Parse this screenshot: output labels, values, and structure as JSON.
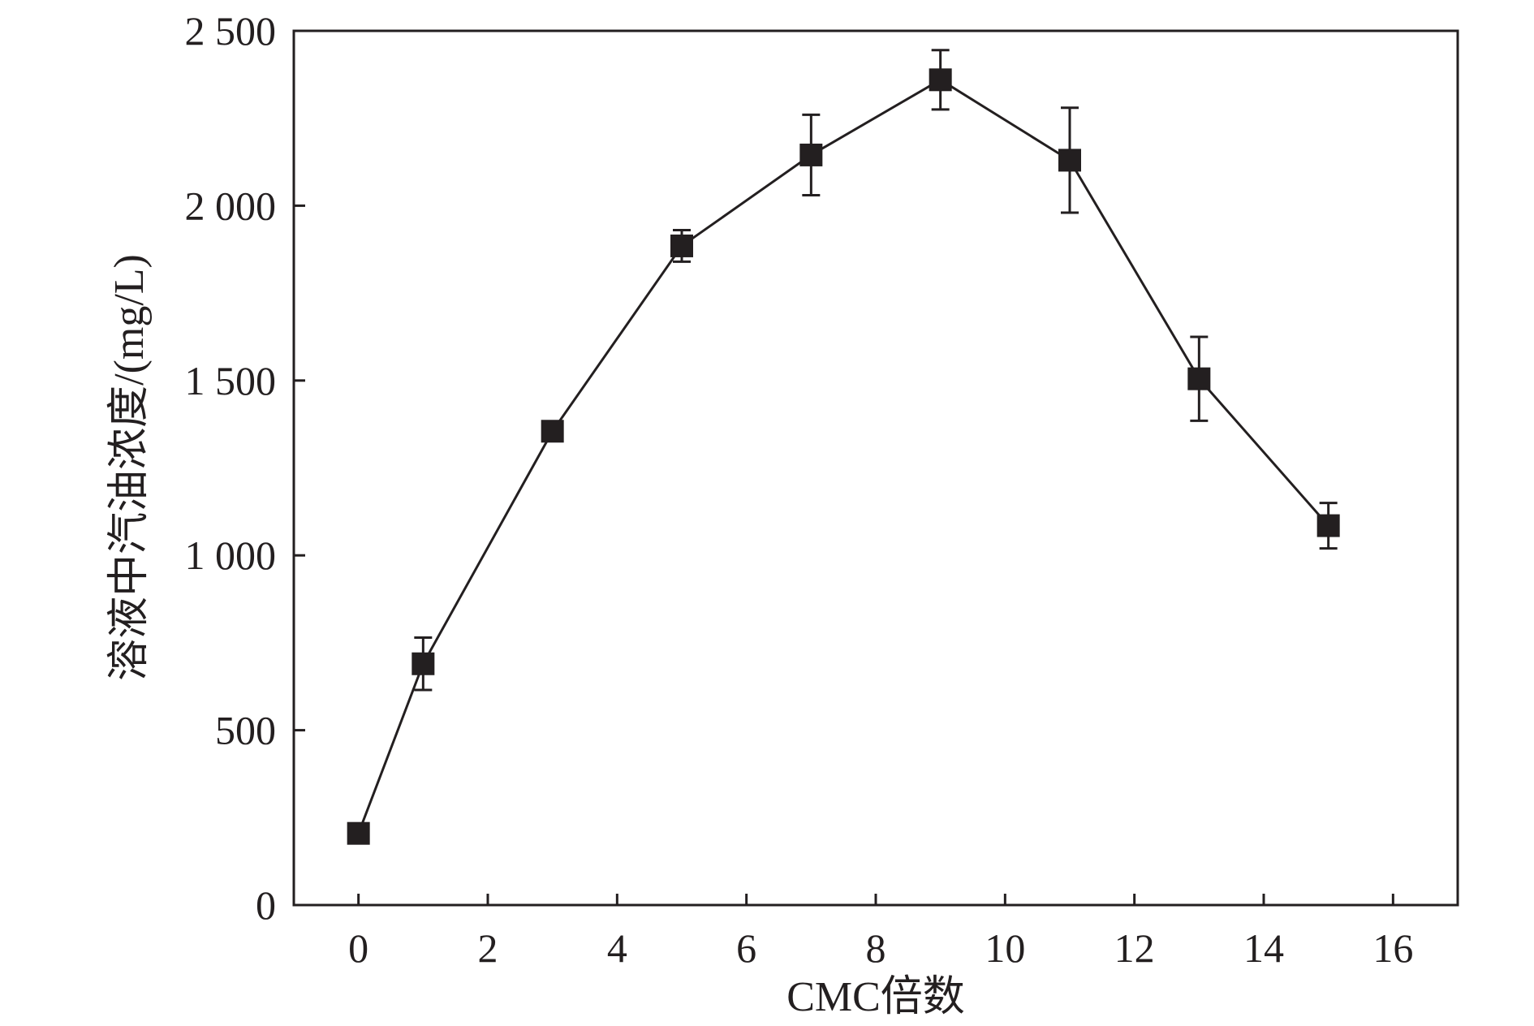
{
  "chart_data": {
    "type": "line",
    "title": "",
    "xlabel": "CMC倍数",
    "ylabel": "溶液中汽油浓度/(mg/L)",
    "xlim": [
      -1,
      17
    ],
    "ylim": [
      0,
      2500
    ],
    "x_ticks": [
      0,
      2,
      4,
      6,
      8,
      10,
      12,
      14,
      16
    ],
    "x_tick_labels": [
      "0",
      "2",
      "4",
      "6",
      "8",
      "10",
      "12",
      "14",
      "16"
    ],
    "y_ticks": [
      0,
      500,
      1000,
      1500,
      2000,
      2500
    ],
    "y_tick_labels": [
      "0",
      "500",
      "1 000",
      "1 500",
      "2 000",
      "2 500"
    ],
    "grid": false,
    "legend": "none",
    "series": [
      {
        "marker": "square",
        "color": "#231f20",
        "x": [
          0,
          1,
          3,
          5,
          7,
          9,
          11,
          13,
          15
        ],
        "y": [
          205,
          690,
          1355,
          1885,
          2145,
          2360,
          2130,
          1505,
          1085
        ],
        "err": [
          0,
          75,
          0,
          45,
          115,
          85,
          150,
          120,
          65
        ]
      }
    ]
  }
}
